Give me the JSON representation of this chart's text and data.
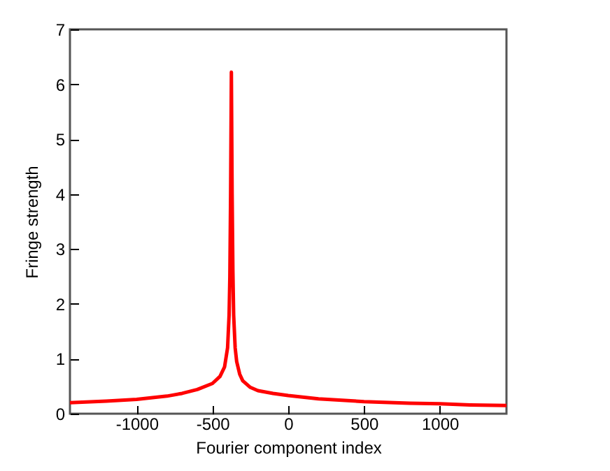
{
  "chart_data": {
    "type": "line",
    "xlabel": "Fourier component index",
    "ylabel": "Fringe strength",
    "xlim": [
      -1440,
      1440
    ],
    "xticks": [
      -1000,
      -500,
      0,
      500,
      1000
    ],
    "ylim": [
      0,
      7
    ],
    "yticks": [
      0,
      1,
      2,
      3,
      4,
      5,
      6,
      7
    ],
    "grid": false,
    "series": [
      {
        "color": "#ff0000",
        "x": [
          -1440,
          -1200,
          -1000,
          -800,
          -700,
          -600,
          -500,
          -450,
          -420,
          -400,
          -390,
          -385,
          -380,
          -375,
          -370,
          -365,
          -360,
          -350,
          -340,
          -320,
          -300,
          -250,
          -200,
          -100,
          0,
          200,
          500,
          800,
          1000,
          1200,
          1440
        ],
        "values": [
          0.2,
          0.23,
          0.26,
          0.32,
          0.37,
          0.44,
          0.55,
          0.68,
          0.85,
          1.2,
          1.8,
          2.5,
          4.0,
          6.22,
          4.0,
          2.6,
          1.8,
          1.2,
          0.95,
          0.72,
          0.6,
          0.48,
          0.42,
          0.37,
          0.33,
          0.27,
          0.22,
          0.19,
          0.18,
          0.16,
          0.15
        ]
      }
    ]
  }
}
